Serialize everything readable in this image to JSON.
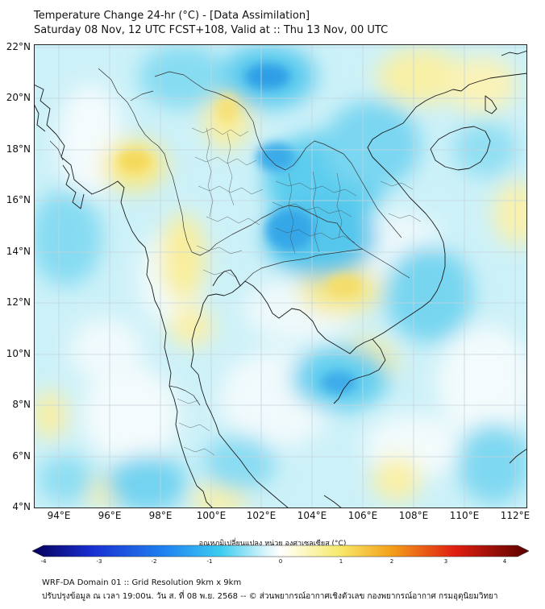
{
  "header": {
    "title_line1": "Temperature Change 24-hr (°C) - [Data Assimilation]",
    "title_line2": "Saturday 08 Nov, 12 UTC FCST+108, Valid at :: Thu 13 Nov, 00 UTC"
  },
  "map": {
    "lat_labels": [
      "22°N",
      "20°N",
      "18°N",
      "16°N",
      "14°N",
      "12°N",
      "10°N",
      "8°N",
      "6°N",
      "4°N"
    ],
    "lon_labels": [
      "94°E",
      "96°E",
      "98°E",
      "100°E",
      "102°E",
      "104°E",
      "106°E",
      "108°E",
      "110°E",
      "112°E"
    ],
    "extent": {
      "lon": [
        93,
        112.5
      ],
      "lat": [
        4,
        22.3
      ]
    },
    "colors": {
      "neutral": "#f7fbff",
      "light_blue": "#bdeff8",
      "mid_blue": "#5fd0ef",
      "strong_blue": "#1f9fe6",
      "light_yellow": "#fbf4b4",
      "mid_yellow": "#f5df66",
      "coast": "#1a1a1a",
      "border": "#333333",
      "grid": "#c4d4dc"
    }
  },
  "legend": {
    "title": "อุณหภูมิเปลี่ยนแปลง หน่วย องศาเซลเซียส (°C)",
    "tick_labels": [
      "-4",
      "-3",
      "-2",
      "-1",
      "0",
      "1",
      "2",
      "3",
      "4"
    ],
    "range": [
      -4,
      4
    ]
  },
  "footer": {
    "line1": "WRF-DA Domain 01 :: Grid Resolution 9km x 9km",
    "line2": "ปรับปรุงข้อมูล ณ เวลา 19:00น. วัน ส. ที่ 08 พ.ย. 2568 -- © ส่วนพยากรณ์อากาศเชิงตัวเลข กองพยากรณ์อากาศ กรมอุตุนิยมวิทยา"
  }
}
